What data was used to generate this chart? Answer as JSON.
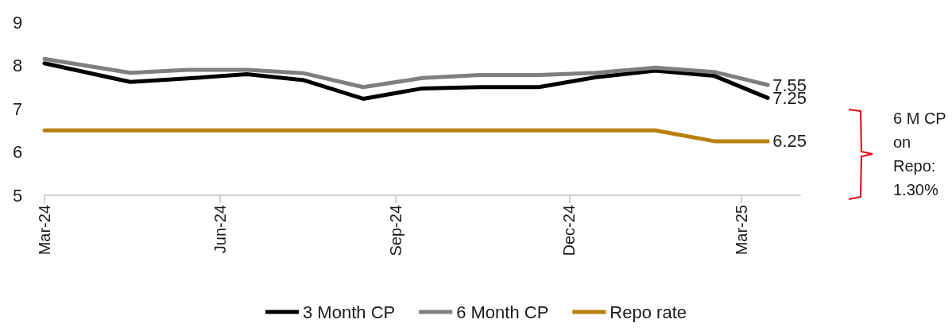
{
  "chart_data": {
    "type": "line",
    "x": [
      "2024-03-01",
      "2024-04-15",
      "2024-05-15",
      "2024-06-15",
      "2024-07-15",
      "2024-08-15",
      "2024-09-15",
      "2024-10-15",
      "2024-11-15",
      "2024-12-15",
      "2025-01-15",
      "2025-02-15",
      "2025-03-15"
    ],
    "series": [
      {
        "name": "3 Month CP",
        "color": "#000000",
        "values": [
          8.05,
          7.62,
          7.7,
          7.8,
          7.66,
          7.23,
          7.47,
          7.5,
          7.5,
          7.73,
          7.88,
          7.76,
          7.25
        ],
        "value_labels": [
          null,
          null,
          null,
          null,
          null,
          null,
          null,
          null,
          null,
          null,
          null,
          null,
          "7.25"
        ]
      },
      {
        "name": "6 Month CP",
        "color": "#7f7f7f",
        "values": [
          8.15,
          7.83,
          7.9,
          7.9,
          7.82,
          7.5,
          7.71,
          7.78,
          7.78,
          7.83,
          7.95,
          7.85,
          7.55
        ],
        "value_labels": [
          null,
          null,
          null,
          null,
          null,
          null,
          null,
          null,
          null,
          null,
          null,
          null,
          "7.55"
        ]
      },
      {
        "name": "Repo rate",
        "color": "#b8800f",
        "values": [
          6.5,
          6.5,
          6.5,
          6.5,
          6.5,
          6.5,
          6.5,
          6.5,
          6.5,
          6.5,
          6.5,
          6.25,
          6.25
        ],
        "value_labels": [
          null,
          null,
          null,
          null,
          null,
          null,
          null,
          null,
          null,
          null,
          null,
          null,
          "6.25"
        ]
      }
    ],
    "xlim": [
      "2024-03-01",
      "2025-04-01"
    ],
    "xticks": [
      {
        "value": "2024-03-01",
        "label": "Mar-24"
      },
      {
        "value": "2024-06-01",
        "label": "Jun-24"
      },
      {
        "value": "2024-09-01",
        "label": "Sep-24"
      },
      {
        "value": "2024-12-01",
        "label": "Dec-24"
      },
      {
        "value": "2025-03-01",
        "label": "Mar-25"
      }
    ],
    "ylim": [
      5,
      9
    ],
    "yticks": [
      5,
      6,
      7,
      8,
      9
    ],
    "annotations": [
      "6 M CP on Repo: 1.30%"
    ],
    "grid": false,
    "legend": "bottom",
    "marker": "none",
    "line_style": "solid"
  }
}
